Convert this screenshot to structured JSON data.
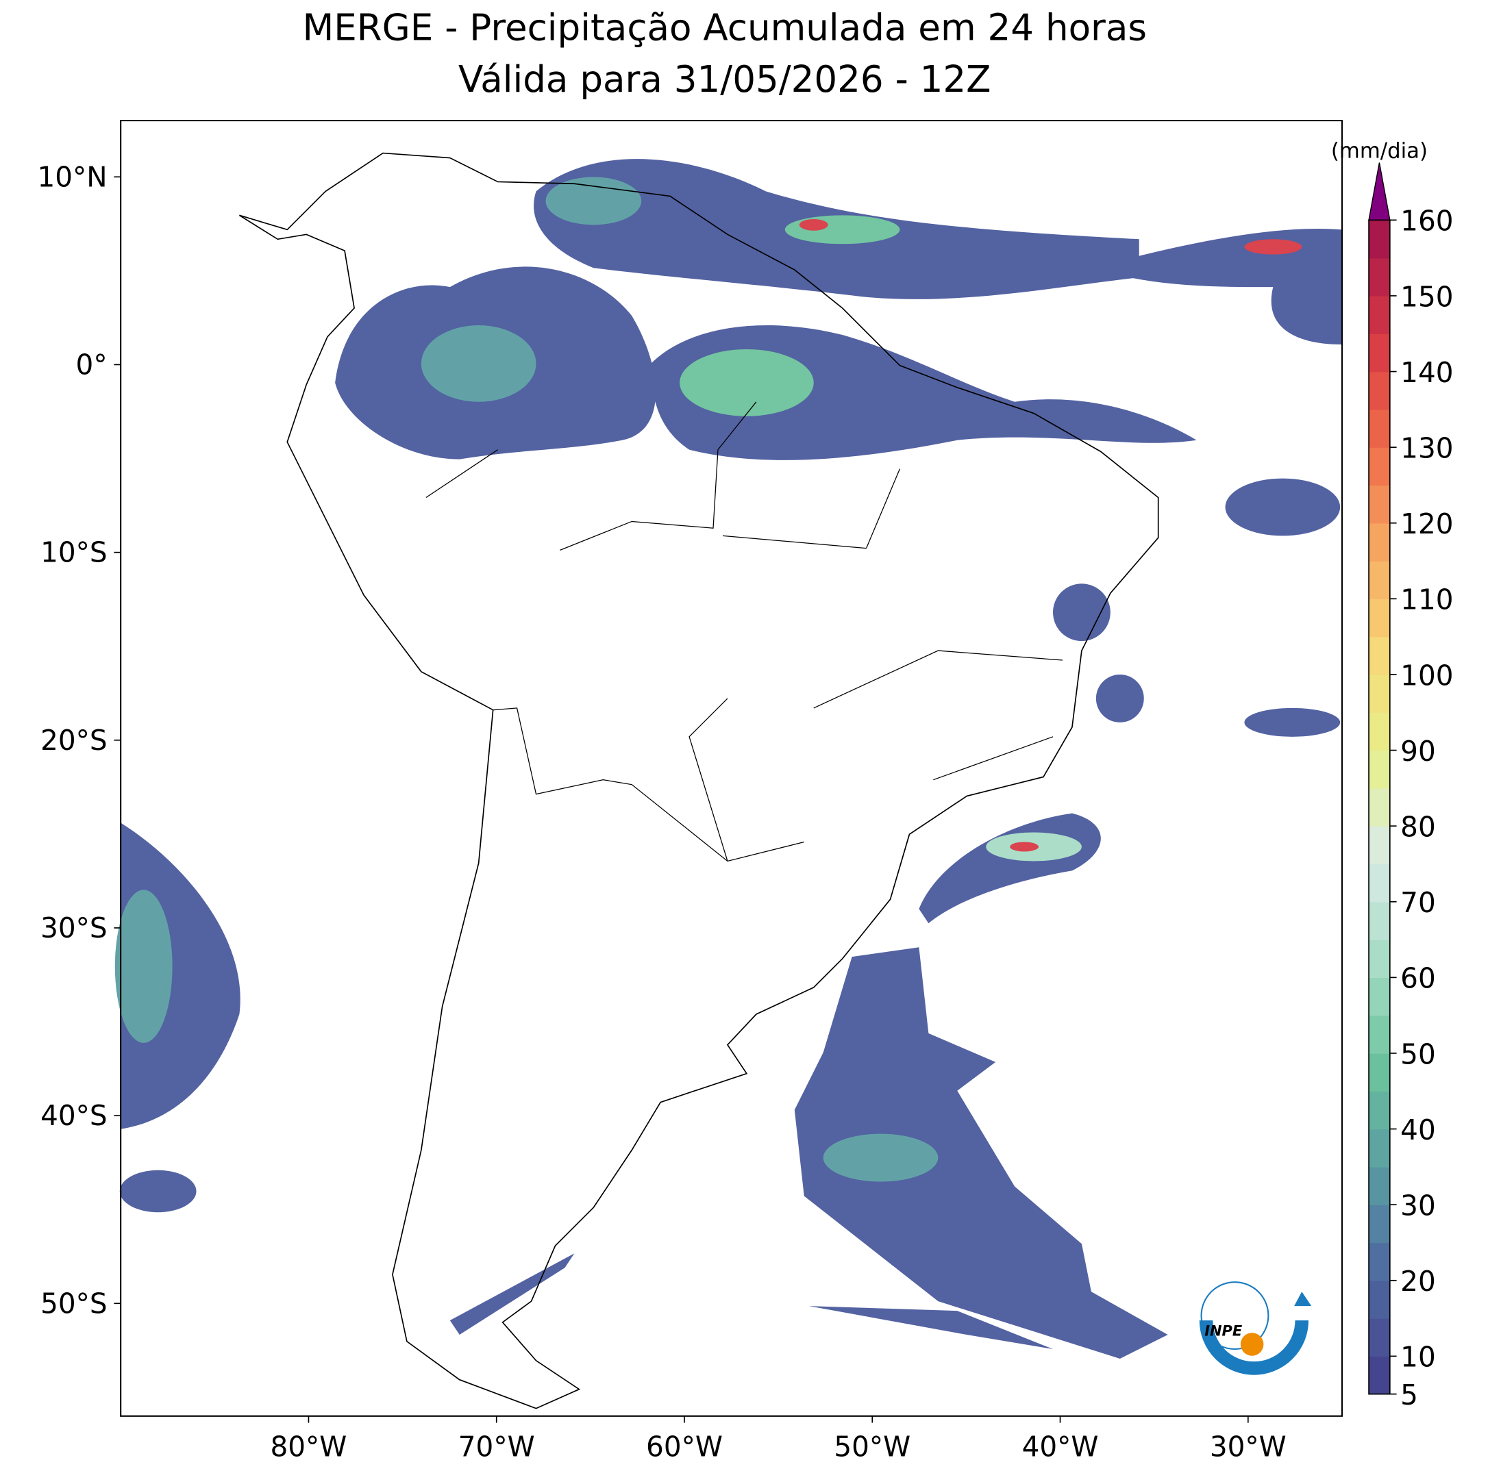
{
  "title": "MERGE - Precipitação Acumulada em 24 horas",
  "subtitle": "Válida para 31/05/2026 - 12Z",
  "extent": {
    "lon": [
      -90,
      -25
    ],
    "lat": [
      -56,
      13
    ]
  },
  "lon_ticks": [
    {
      "value": -80,
      "label": "80°W"
    },
    {
      "value": -70,
      "label": "70°W"
    },
    {
      "value": -60,
      "label": "60°W"
    },
    {
      "value": -50,
      "label": "50°W"
    },
    {
      "value": -40,
      "label": "40°W"
    },
    {
      "value": -30,
      "label": "30°W"
    }
  ],
  "lat_ticks": [
    {
      "value": 10,
      "label": "10°N"
    },
    {
      "value": 0,
      "label": "0°"
    },
    {
      "value": -10,
      "label": "10°S"
    },
    {
      "value": -20,
      "label": "20°S"
    },
    {
      "value": -30,
      "label": "30°S"
    },
    {
      "value": -40,
      "label": "40°S"
    },
    {
      "value": -50,
      "label": "50°S"
    }
  ],
  "colorbar": {
    "label": "(mm/dia)",
    "lim": [
      5,
      160
    ],
    "ticks": [
      5,
      10,
      20,
      30,
      40,
      50,
      60,
      70,
      80,
      90,
      100,
      110,
      120,
      130,
      140,
      150,
      160
    ],
    "levels": [
      5,
      10,
      15,
      20,
      25,
      30,
      35,
      40,
      45,
      50,
      55,
      60,
      65,
      70,
      75,
      80,
      85,
      90,
      95,
      100,
      105,
      110,
      115,
      120,
      125,
      130,
      135,
      140,
      145,
      150,
      155,
      160
    ],
    "colormap": [
      "#45458f",
      "#4f6aa1",
      "#5a9ea3",
      "#6cc39d",
      "#a8dcc6",
      "#d9ebe8",
      "#e6f08c",
      "#f7d877",
      "#f7a962",
      "#ef6b4a",
      "#d83a45",
      "#a8184a"
    ],
    "extend_color": "#800080"
  },
  "logo_text": "INPE"
}
